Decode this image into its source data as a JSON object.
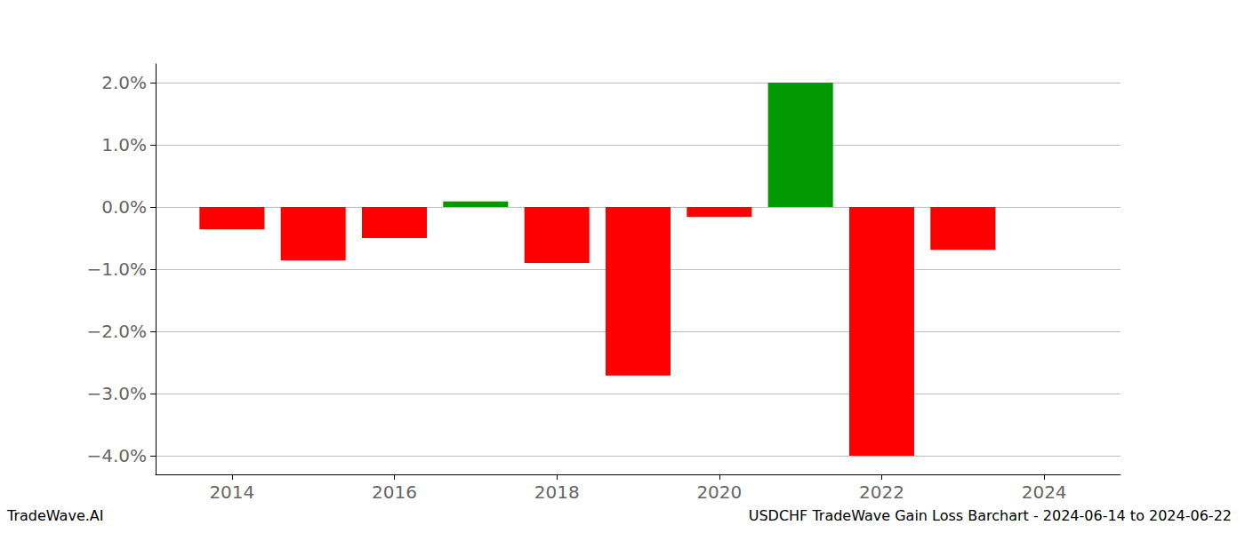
{
  "chart_data": {
    "type": "bar",
    "title": "USDCHF TradeWave Gain Loss Barchart - 2024-06-14 to 2024-06-22",
    "annotations": [
      "TradeWave.AI"
    ],
    "x": [
      2014,
      2015,
      2016,
      2017,
      2018,
      2019,
      2020,
      2021,
      2022,
      2023,
      2024
    ],
    "values": [
      -0.36,
      -0.86,
      -0.5,
      0.09,
      -0.9,
      -2.71,
      -0.16,
      2.0,
      -4.0,
      -0.69,
      0
    ],
    "colors": [
      "#ff0000",
      "#ff0000",
      "#ff0000",
      "#009900",
      "#ff0000",
      "#ff0000",
      "#ff0000",
      "#009900",
      "#ff0000",
      "#ff0000",
      "#ff0000"
    ],
    "xlim": [
      2013.06,
      2024.94
    ],
    "xticks": [
      2014,
      2016,
      2018,
      2020,
      2022,
      2024
    ],
    "ylim": [
      -4.3,
      2.3
    ],
    "yticks": [
      {
        "value": -4,
        "label": "−4.0%"
      },
      {
        "value": -3,
        "label": "−3.0%"
      },
      {
        "value": -2,
        "label": "−2.0%"
      },
      {
        "value": -1,
        "label": "−1.0%"
      },
      {
        "value": 0,
        "label": "0.0%"
      },
      {
        "value": 1,
        "label": "1.0%"
      },
      {
        "value": 2,
        "label": "2.0%"
      }
    ],
    "grid": true
  }
}
